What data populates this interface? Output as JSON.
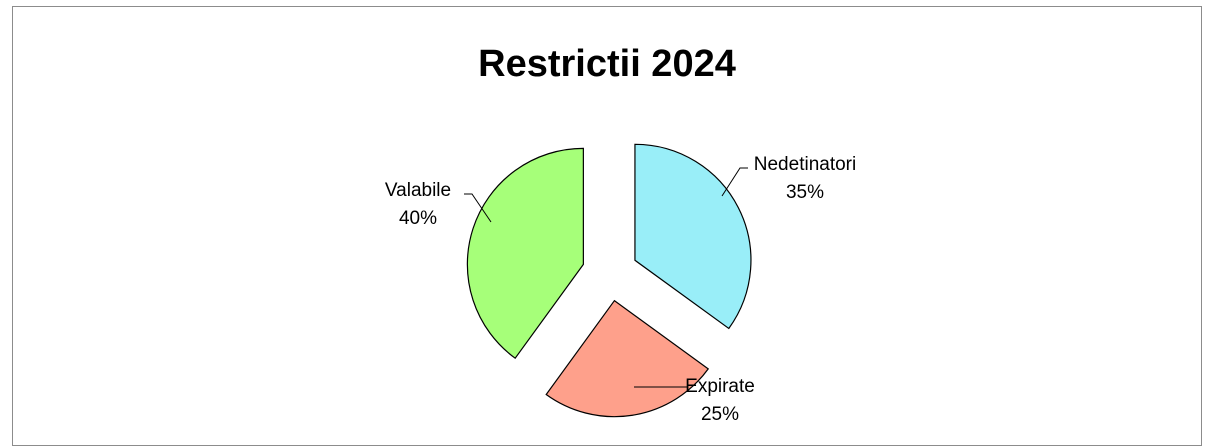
{
  "chart_data": {
    "type": "pie",
    "title": "Restrictii 2024",
    "slices": [
      {
        "label": "Nedetinatori",
        "value": 35,
        "percent_label": "35%",
        "color": "#99eef8"
      },
      {
        "label": "Expirate",
        "value": 25,
        "percent_label": "25%",
        "color": "#fea08b"
      },
      {
        "label": "Valabile",
        "value": 40,
        "percent_label": "40%",
        "color": "#a6ff79"
      }
    ],
    "exploded": true,
    "legend": "none",
    "data_labels": "category name and percentage"
  }
}
